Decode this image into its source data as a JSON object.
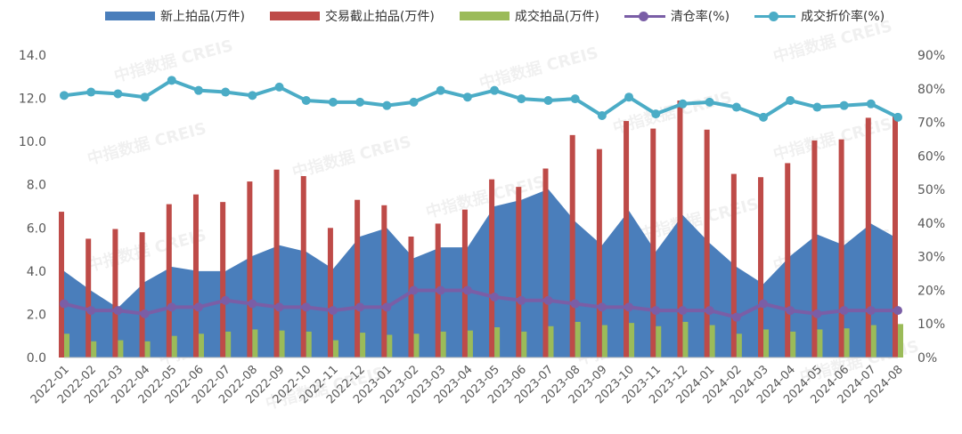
{
  "chart_data": {
    "type": "bar",
    "categories": [
      "2022-01",
      "2022-02",
      "2022-03",
      "2022-04",
      "2022-05",
      "2022-06",
      "2022-07",
      "2022-08",
      "2022-09",
      "2022-10",
      "2022-11",
      "2022-12",
      "2023-01",
      "2023-02",
      "2023-03",
      "2023-04",
      "2023-05",
      "2023-06",
      "2023-07",
      "2023-08",
      "2023-09",
      "2023-10",
      "2023-11",
      "2023-12",
      "2024-01",
      "2024-02",
      "2024-03",
      "2024-04",
      "2024-05",
      "2024-06",
      "2024-07",
      "2024-08"
    ],
    "ylim_left": [
      0,
      14
    ],
    "yticks_left": [
      "0.0",
      "2.0",
      "4.0",
      "6.0",
      "8.0",
      "10.0",
      "12.0",
      "14.0"
    ],
    "ylim_right": [
      0,
      90
    ],
    "yticks_right": [
      "0%",
      "10%",
      "20%",
      "30%",
      "40%",
      "50%",
      "60%",
      "70%",
      "80%",
      "90%"
    ],
    "grid": false,
    "legend_position": "top",
    "watermark": "中指数据 CREIS",
    "series": [
      {
        "name": "新上拍品(万件)",
        "type": "area",
        "axis": "left",
        "color": "#4a7ebb",
        "values": [
          4.0,
          3.1,
          2.3,
          3.5,
          4.2,
          4.0,
          4.0,
          4.7,
          5.2,
          4.9,
          4.1,
          5.6,
          6.0,
          4.6,
          5.1,
          5.1,
          7.0,
          7.3,
          7.8,
          6.3,
          5.2,
          6.8,
          4.9,
          6.6,
          5.3,
          4.2,
          3.4,
          4.7,
          5.7,
          5.2,
          6.2,
          5.5
        ]
      },
      {
        "name": "交易截止拍品(万件)",
        "type": "bar",
        "axis": "left",
        "color": "#be4b48",
        "values": [
          6.75,
          5.5,
          5.95,
          5.8,
          7.1,
          7.55,
          7.2,
          8.15,
          8.7,
          8.4,
          6.0,
          7.3,
          7.05,
          5.6,
          6.2,
          6.85,
          8.25,
          7.9,
          8.75,
          10.3,
          9.65,
          10.95,
          10.6,
          11.9,
          10.55,
          8.5,
          8.35,
          9.0,
          10.05,
          10.1,
          11.1,
          11.25
        ]
      },
      {
        "name": "成交拍品(万件)",
        "type": "bar",
        "axis": "left",
        "color": "#9bbb59",
        "values": [
          1.1,
          0.75,
          0.8,
          0.75,
          1.0,
          1.1,
          1.2,
          1.3,
          1.25,
          1.2,
          0.8,
          1.15,
          1.05,
          1.1,
          1.2,
          1.25,
          1.4,
          1.2,
          1.45,
          1.65,
          1.5,
          1.6,
          1.45,
          1.65,
          1.5,
          1.1,
          1.3,
          1.2,
          1.3,
          1.35,
          1.5,
          1.55
        ]
      },
      {
        "name": "清仓率(%)",
        "type": "line",
        "axis": "right",
        "color": "#7a5ea6",
        "values": [
          16,
          14,
          14,
          13,
          15,
          15,
          17,
          16,
          15,
          15,
          14,
          15,
          15,
          20,
          20,
          20,
          18,
          17,
          17,
          16,
          15,
          15,
          14,
          14,
          14,
          12,
          16,
          14,
          13,
          14,
          14,
          14
        ]
      },
      {
        "name": "成交折价率(%)",
        "type": "line",
        "axis": "right",
        "color": "#4bacc6",
        "values": [
          78,
          79,
          78.5,
          77.5,
          82.5,
          79.5,
          79,
          78,
          80.5,
          76.5,
          76,
          76,
          75,
          76,
          79.5,
          77.5,
          79.5,
          77,
          76.5,
          77,
          72,
          77.5,
          72.5,
          75.5,
          76,
          74.5,
          71.5,
          76.5,
          74.5,
          75,
          75.5,
          71.5
        ]
      }
    ]
  }
}
